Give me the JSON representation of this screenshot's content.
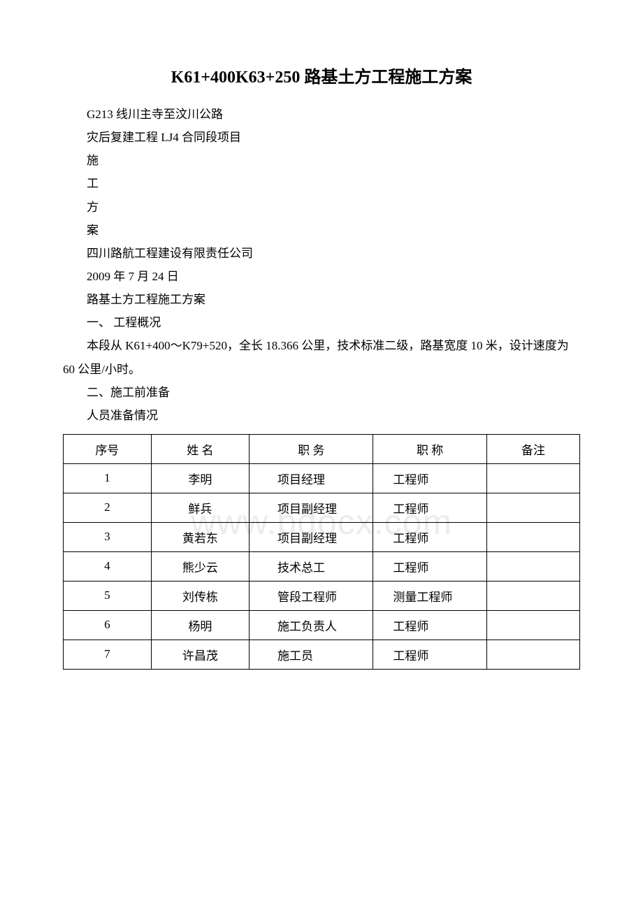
{
  "watermark": "www.bdocx.com",
  "title": "K61+400K63+250 路基土方工程施工方案",
  "lines": [
    "G213 线川主寺至汶川公路",
    "灾后复建工程 LJ4 合同段项目",
    "施",
    "工",
    "方",
    "案",
    "四川路航工程建设有限责任公司",
    "2009 年 7 月 24 日",
    "路基土方工程施工方案",
    "一、 工程概况"
  ],
  "paragraph": "本段从 K61+400～K79+520，全长 18.366 公里，技术标准二级，路基宽度 10 米，设计速度为 60 公里/小时。",
  "lines2": [
    "二、施工前准备",
    "人员准备情况"
  ],
  "table": {
    "header": {
      "c1": "序号",
      "c2": "姓 名",
      "c3": "职 务",
      "c4": "职 称",
      "c5": "备注"
    },
    "rows": [
      {
        "c1": "1",
        "c2": "李明",
        "c3": "项目经理",
        "c4": "工程师",
        "c5": ""
      },
      {
        "c1": "2",
        "c2": "鲜兵",
        "c3": "项目副经理",
        "c4": "工程师",
        "c5": ""
      },
      {
        "c1": "3",
        "c2": "黄若东",
        "c3": "项目副经理",
        "c4": "工程师",
        "c5": ""
      },
      {
        "c1": "4",
        "c2": "熊少云",
        "c3": "技术总工",
        "c4": "工程师",
        "c5": ""
      },
      {
        "c1": "5",
        "c2": "刘传栋",
        "c3": "管段工程师",
        "c4": "测量工程师",
        "c5": ""
      },
      {
        "c1": "6",
        "c2": "杨明",
        "c3": "施工负责人",
        "c4": "工程师",
        "c5": ""
      },
      {
        "c1": "7",
        "c2": "许昌茂",
        "c3": "施工员",
        "c4": "工程师",
        "c5": ""
      }
    ]
  }
}
